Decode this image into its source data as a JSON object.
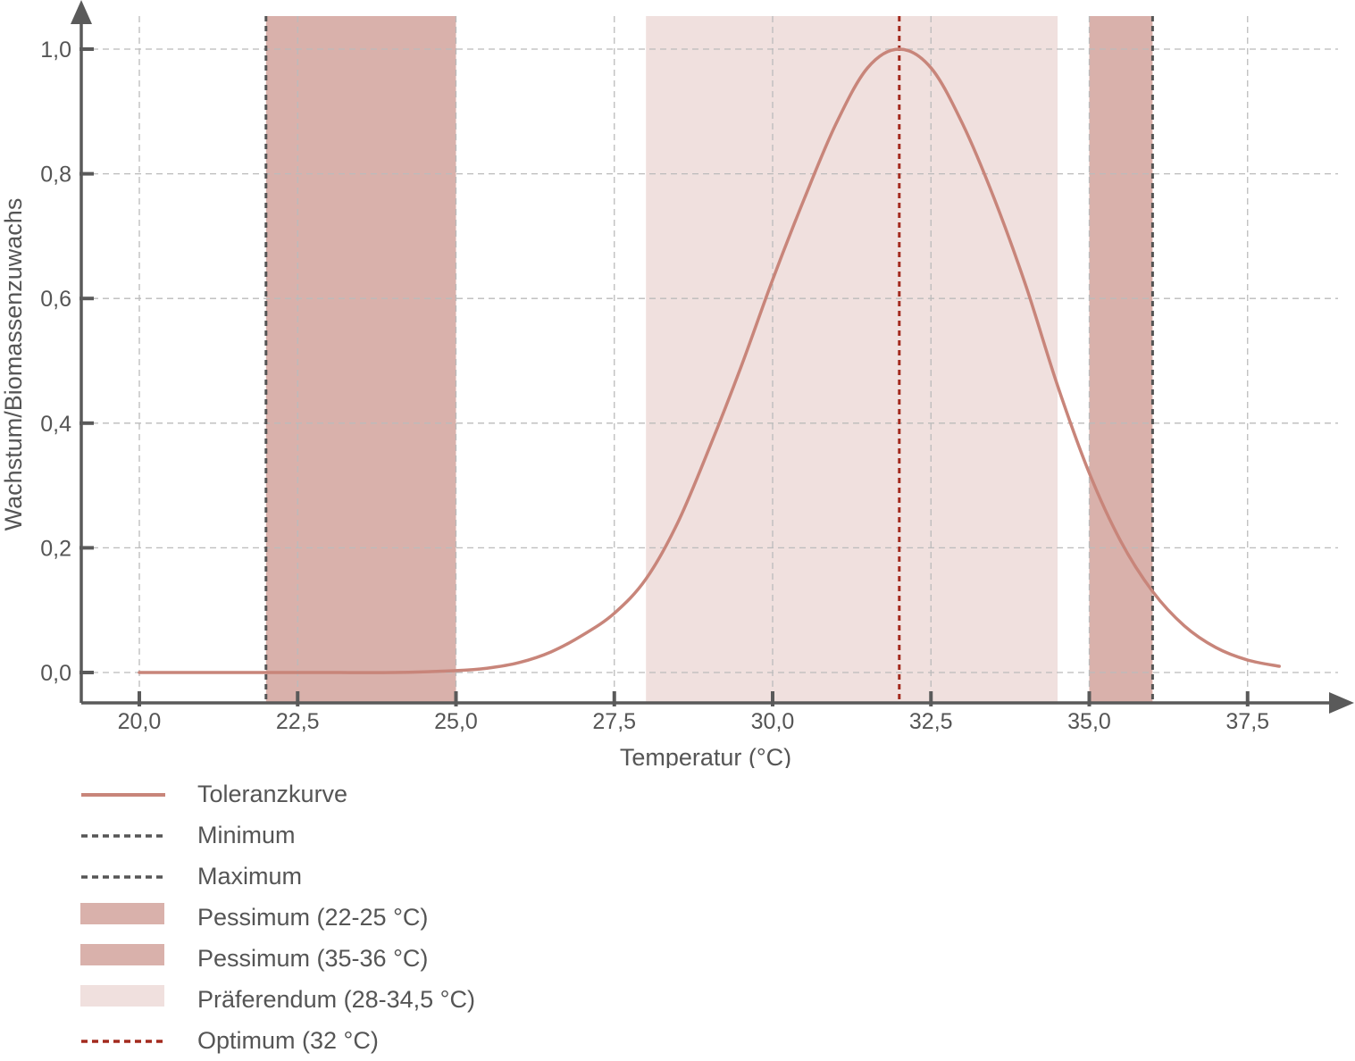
{
  "chart_data": {
    "type": "line",
    "title": "",
    "xlabel": "Temperatur (°C)",
    "ylabel": "Wachstum/Biomassenzuwachs",
    "xlim": [
      19.1,
      38.8
    ],
    "ylim": [
      -0.047,
      1.0
    ],
    "x_ticks": [
      20.0,
      22.5,
      25.0,
      27.5,
      30.0,
      32.5,
      35.0,
      37.5
    ],
    "x_tick_labels": [
      "20,0",
      "22,5",
      "25,0",
      "27,5",
      "30,0",
      "32,5",
      "35,0",
      "37,5"
    ],
    "y_ticks": [
      0.0,
      0.2,
      0.4,
      0.6,
      0.8,
      1.0
    ],
    "y_tick_labels": [
      "0,0",
      "0,2",
      "0,4",
      "0,6",
      "0,8",
      "1,0"
    ],
    "grid": true,
    "legend_position": "bottom-left",
    "series": [
      {
        "name": "Toleranzkurve",
        "color": "#c8857a",
        "x": [
          20.0,
          21.0,
          22.0,
          23.0,
          24.0,
          25.0,
          25.5,
          26.0,
          26.5,
          27.0,
          27.5,
          28.0,
          28.5,
          29.0,
          29.5,
          30.0,
          30.5,
          31.0,
          31.5,
          32.0,
          32.5,
          33.0,
          33.5,
          34.0,
          34.5,
          35.0,
          35.5,
          36.0,
          36.5,
          37.0,
          37.5,
          38.0
        ],
        "y": [
          0.0,
          0.0,
          0.0,
          0.0,
          0.0,
          0.003,
          0.007,
          0.016,
          0.033,
          0.06,
          0.095,
          0.15,
          0.24,
          0.36,
          0.49,
          0.63,
          0.76,
          0.88,
          0.97,
          1.0,
          0.97,
          0.88,
          0.76,
          0.62,
          0.46,
          0.32,
          0.21,
          0.13,
          0.075,
          0.04,
          0.02,
          0.01
        ]
      }
    ],
    "vlines": [
      {
        "name": "Minimum",
        "x": 22.0,
        "color": "#555555",
        "style": "dashed"
      },
      {
        "name": "Maximum",
        "x": 36.0,
        "color": "#555555",
        "style": "dashed"
      },
      {
        "name": "Optimum (32 °C)",
        "x": 32.0,
        "color": "#a32a1e",
        "style": "dashed"
      }
    ],
    "bands": [
      {
        "name": "Pessimum (22-25 °C)",
        "x_from": 22.0,
        "x_to": 25.0,
        "color": "#d9b1ab"
      },
      {
        "name": "Pessimum (35-36 °C)",
        "x_from": 35.0,
        "x_to": 36.0,
        "color": "#d9b1ab"
      },
      {
        "name": "Präferendum (28-34,5 °C)",
        "x_from": 28.0,
        "x_to": 34.5,
        "color": "#f0e0de"
      }
    ]
  },
  "legend": {
    "items": [
      {
        "label": "Toleranzkurve",
        "kind": "solid-line",
        "color": "#c8857a"
      },
      {
        "label": "Minimum",
        "kind": "dashed-line",
        "color": "#555555"
      },
      {
        "label": "Maximum",
        "kind": "dashed-line",
        "color": "#555555"
      },
      {
        "label": "Pessimum (22-25 °C)",
        "kind": "box",
        "color": "#d9b1ab"
      },
      {
        "label": "Pessimum (35-36 °C)",
        "kind": "box",
        "color": "#d9b1ab"
      },
      {
        "label": "Präferendum (28-34,5 °C)",
        "kind": "box",
        "color": "#f0e0de"
      },
      {
        "label": "Optimum (32 °C)",
        "kind": "dashed-line",
        "color": "#a32a1e"
      }
    ]
  },
  "colors": {
    "axis": "#5a5a5a",
    "grid": "#bbbbbb"
  }
}
